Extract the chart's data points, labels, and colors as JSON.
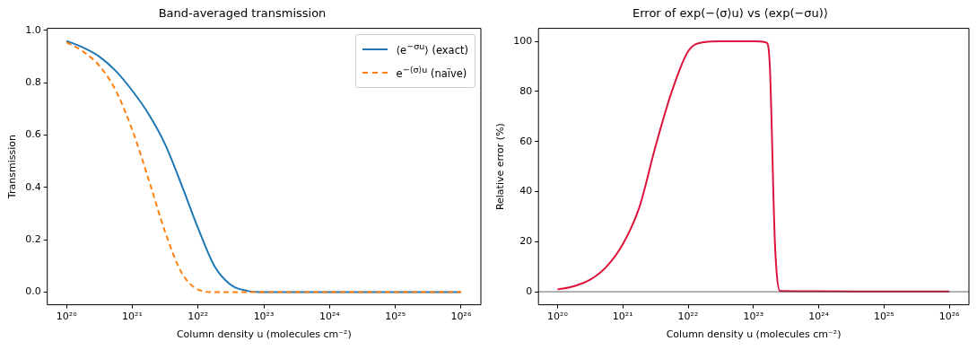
{
  "chart_data": [
    {
      "type": "line",
      "title": "Band-averaged transmission",
      "xlabel": "Column density u (molecules cm⁻²)",
      "ylabel": "Transmission",
      "log": "x",
      "grid": false,
      "legend": "top right",
      "marker": "none",
      "xlim": [
        5.1e+19,
        2e+26
      ],
      "xticks": [
        {
          "value": 1e+20,
          "label": "10²⁰"
        },
        {
          "value": 1e+21,
          "label": "10²¹"
        },
        {
          "value": 1e+22,
          "label": "10²²"
        },
        {
          "value": 1e+23,
          "label": "10²³"
        },
        {
          "value": 1e+24,
          "label": "10²⁴"
        },
        {
          "value": 1e+25,
          "label": "10²⁵"
        },
        {
          "value": 1e+26,
          "label": "10²⁶"
        }
      ],
      "ylim": [
        -0.048,
        1.008
      ],
      "yticks": [
        {
          "value": 0,
          "label": "0.0"
        },
        0.2,
        0.4,
        0.6,
        0.8,
        {
          "value": 1,
          "label": "1.0"
        }
      ],
      "series": [
        {
          "name": "⟨e$^{−σu}$⟩ (exact)",
          "color": "#1f77b4",
          "line_style": "solid",
          "x": [
            1e+20,
            1.778e+20,
            3.162e+20,
            5.623e+20,
            1e+21,
            1.778e+21,
            3.162e+21,
            5.623e+21,
            1e+22,
            1.778e+22,
            3.162e+22,
            5.623e+22,
            1e+23,
            1e+24,
            1e+25,
            1e+26
          ],
          "values": [
            0.96,
            0.935,
            0.9,
            0.845,
            0.77,
            0.68,
            0.565,
            0.41,
            0.245,
            0.1,
            0.028,
            0.005,
            0,
            0,
            0,
            0
          ]
        },
        {
          "name": "e$^{−⟨σ⟩u}$ (naïve)",
          "color": "#ff7f0e",
          "line_style": "dashed",
          "x": [
            1e+20,
            1.778e+20,
            3.162e+20,
            5.623e+20,
            1e+21,
            1.778e+21,
            3.162e+21,
            5.623e+21,
            1e+22,
            1.778e+22,
            1e+23,
            1e+24,
            1e+25,
            1e+26
          ],
          "values": [
            0.955,
            0.92,
            0.865,
            0.77,
            0.62,
            0.43,
            0.23,
            0.075,
            0.01,
            0,
            0,
            0,
            0,
            0
          ]
        }
      ]
    },
    {
      "type": "line",
      "title": "Error of exp(−⟨σ⟩u) vs ⟨exp(−σu)⟩",
      "xlabel": "Column density u (molecules cm⁻²)",
      "ylabel": "Relative error (%)",
      "log": "x",
      "grid": false,
      "marker": "none",
      "xlim": [
        5.1e+19,
        2e+26
      ],
      "xticks": [
        {
          "value": 1e+20,
          "label": "10²⁰"
        },
        {
          "value": 1e+21,
          "label": "10²¹"
        },
        {
          "value": 1e+22,
          "label": "10²²"
        },
        {
          "value": 1e+23,
          "label": "10²³"
        },
        {
          "value": 1e+24,
          "label": "10²⁴"
        },
        {
          "value": 1e+25,
          "label": "10²⁵"
        },
        {
          "value": 1e+26,
          "label": "10²⁶"
        }
      ],
      "ylim": [
        -5.2,
        105.2
      ],
      "yticks": [
        0,
        20,
        40,
        60,
        80,
        100
      ],
      "ref_lines": [
        {
          "axis": "y",
          "value": 0,
          "color": "#404040"
        }
      ],
      "series": [
        {
          "color": "#dc143c",
          "line_style": "solid",
          "x": [
            1e+20,
            1.778e+20,
            3.162e+20,
            5.623e+20,
            1e+21,
            1.778e+21,
            3.162e+21,
            5.623e+21,
            1e+22,
            1.778e+22,
            3.162e+22,
            1e+23,
            1.585e+23,
            1.778e+23,
            2.14e+23,
            2.57e+23,
            1e+24,
            1e+25,
            1e+26
          ],
          "values": [
            0.9,
            2.2,
            4.8,
            10,
            19,
            33.5,
            58,
            80,
            96,
            99.7,
            100,
            100,
            99.5,
            91,
            19,
            0.3,
            0.2,
            0.1,
            0.1
          ]
        }
      ]
    }
  ]
}
